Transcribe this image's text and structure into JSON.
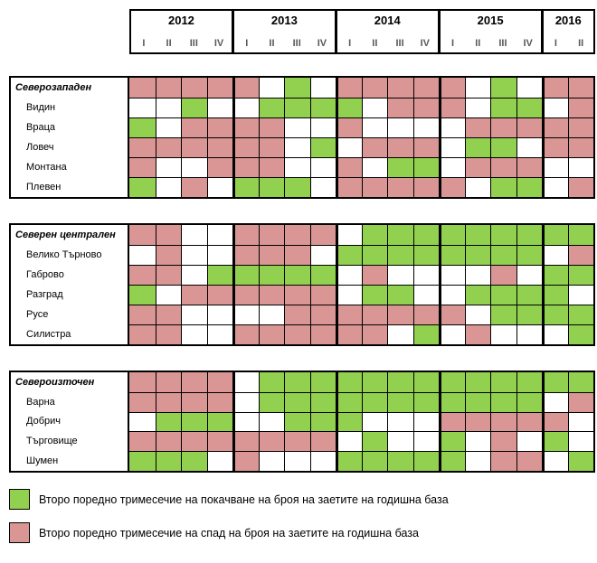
{
  "colors": {
    "increase": "#92D050",
    "decrease": "#D99694",
    "none": "#FFFFFF",
    "grid_line": "#000000",
    "quarter_label_text": "#595959"
  },
  "header": {
    "years": [
      {
        "label": "2012",
        "quarters": [
          "I",
          "II",
          "III",
          "IV"
        ]
      },
      {
        "label": "2013",
        "quarters": [
          "I",
          "II",
          "III",
          "IV"
        ]
      },
      {
        "label": "2014",
        "quarters": [
          "I",
          "II",
          "III",
          "IV"
        ]
      },
      {
        "label": "2015",
        "quarters": [
          "I",
          "II",
          "III",
          "IV"
        ]
      },
      {
        "label": "2016",
        "quarters": [
          "I",
          "II"
        ]
      }
    ]
  },
  "chart_data": {
    "type": "heatmap",
    "columns": [
      "2012-I",
      "2012-II",
      "2012-III",
      "2012-IV",
      "2013-I",
      "2013-II",
      "2013-III",
      "2013-IV",
      "2014-I",
      "2014-II",
      "2014-III",
      "2014-IV",
      "2015-I",
      "2015-II",
      "2015-III",
      "2015-IV",
      "2016-I",
      "2016-II"
    ],
    "cell_codes": {
      "G": "increase (second consecutive quarter of growth in employed, y/y)",
      "P": "decrease (second consecutive quarter of decline in employed, y/y)",
      "W": "none"
    },
    "blocks": [
      {
        "rows": [
          {
            "label": "Северозападен",
            "region": true,
            "cells": "PPPPPWGWPPPPPWGWPP"
          },
          {
            "label": "Видин",
            "region": false,
            "cells": "WWGWWGGGGWPPPWGGWP"
          },
          {
            "label": "Враца",
            "region": false,
            "cells": "GWPPPPWWPWWWWPPPPP"
          },
          {
            "label": "Ловеч",
            "region": false,
            "cells": "PPPPPPWGWPPPWGGWPP"
          },
          {
            "label": "Монтана",
            "region": false,
            "cells": "PWWPPPWWPWGGWPPPWW"
          },
          {
            "label": "Плевен",
            "region": false,
            "cells": "GWPWGGGWPPPPPWGGWP"
          }
        ]
      },
      {
        "rows": [
          {
            "label": "Северен централен",
            "region": true,
            "cells": "PPWWPPPPWGGGGGGGGG"
          },
          {
            "label": "Велико Търново",
            "region": false,
            "cells": "WPWWPPPWGGGGGGGGWP"
          },
          {
            "label": "Габрово",
            "region": false,
            "cells": "PPWGGGGGWPWWWWPWGG"
          },
          {
            "label": "Разград",
            "region": false,
            "cells": "GWPPPPPPWGGWWGGGGW"
          },
          {
            "label": "Русе",
            "region": false,
            "cells": "PPWWWWPPPPPPPWGGGG"
          },
          {
            "label": "Силистра",
            "region": false,
            "cells": "PPWWPPPPPPWGWPWWWG"
          }
        ]
      },
      {
        "rows": [
          {
            "label": "Североизточен",
            "region": true,
            "cells": "PPPPWGGGGGGGGGGGGG"
          },
          {
            "label": "Варна",
            "region": false,
            "cells": "PPPPWGGGGGGGGGGGWP"
          },
          {
            "label": "Добрич",
            "region": false,
            "cells": "WGGGWWGGGWWWPPPPPW"
          },
          {
            "label": "Търговище",
            "region": false,
            "cells": "PPPPPPPPWGWWGWPWGW"
          },
          {
            "label": "Шумен",
            "region": false,
            "cells": "GGGWPWWWGGGGGWPPWG"
          }
        ]
      }
    ]
  },
  "legend": {
    "items": [
      {
        "color_key": "increase",
        "label": "Второ поредно тримесечие на покачване на броя на заетите на годишна база"
      },
      {
        "color_key": "decrease",
        "label": "Второ поредно тримесечие на спад на броя на заетите на годишна база"
      }
    ]
  }
}
